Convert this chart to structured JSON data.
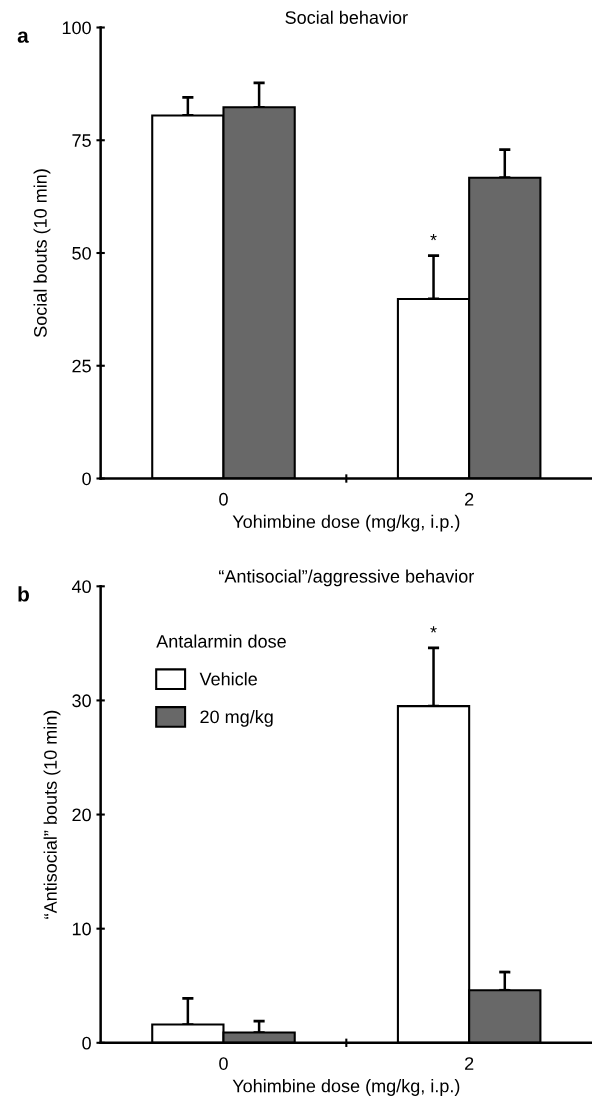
{
  "chart_data": [
    {
      "type": "bar",
      "title": "Social behavior",
      "xlabel": "Yohimbine dose (mg/kg, i.p.)",
      "ylabel": "Social bouts (10 min)",
      "categories": [
        "0",
        "2"
      ],
      "ylim": [
        0,
        100
      ],
      "yticks": [
        0,
        25,
        50,
        75,
        100
      ],
      "grid": false,
      "legend": false,
      "series": [
        {
          "color": "#ffffff",
          "values": [
            80.5,
            39.8
          ],
          "errors": [
            [
              80.5,
              84.5
            ],
            [
              39.8,
              49.4
            ]
          ]
        },
        {
          "color": "#686868",
          "values": [
            82.3,
            66.7
          ],
          "errors": [
            [
              82.3,
              87.7
            ],
            [
              66.7,
              72.9
            ]
          ]
        }
      ],
      "annotations": [
        "a",
        {
          "text": "*",
          "x": "2",
          "y": 49.4
        }
      ]
    },
    {
      "type": "bar",
      "title": "“Antisocial”/aggressive behavior",
      "xlabel": "Yohimbine dose (mg/kg, i.p.)",
      "ylabel": "“Antisocial” bouts (10 min)",
      "categories": [
        "0",
        "2"
      ],
      "ylim": [
        0,
        40
      ],
      "yticks": [
        0,
        10,
        20,
        30,
        40
      ],
      "grid": false,
      "legend": "top left",
      "legend_title": "Antalarmin dose",
      "series": [
        {
          "name": "Vehicle",
          "color": "#ffffff",
          "values": [
            1.6,
            29.5
          ],
          "errors": [
            [
              1.6,
              3.9
            ],
            [
              29.5,
              34.6
            ]
          ]
        },
        {
          "name": "20 mg/kg",
          "color": "#686868",
          "values": [
            0.9,
            4.6
          ],
          "errors": [
            [
              0.9,
              1.9
            ],
            [
              4.6,
              6.2
            ]
          ]
        }
      ],
      "annotations": [
        "b",
        "*"
      ]
    }
  ]
}
